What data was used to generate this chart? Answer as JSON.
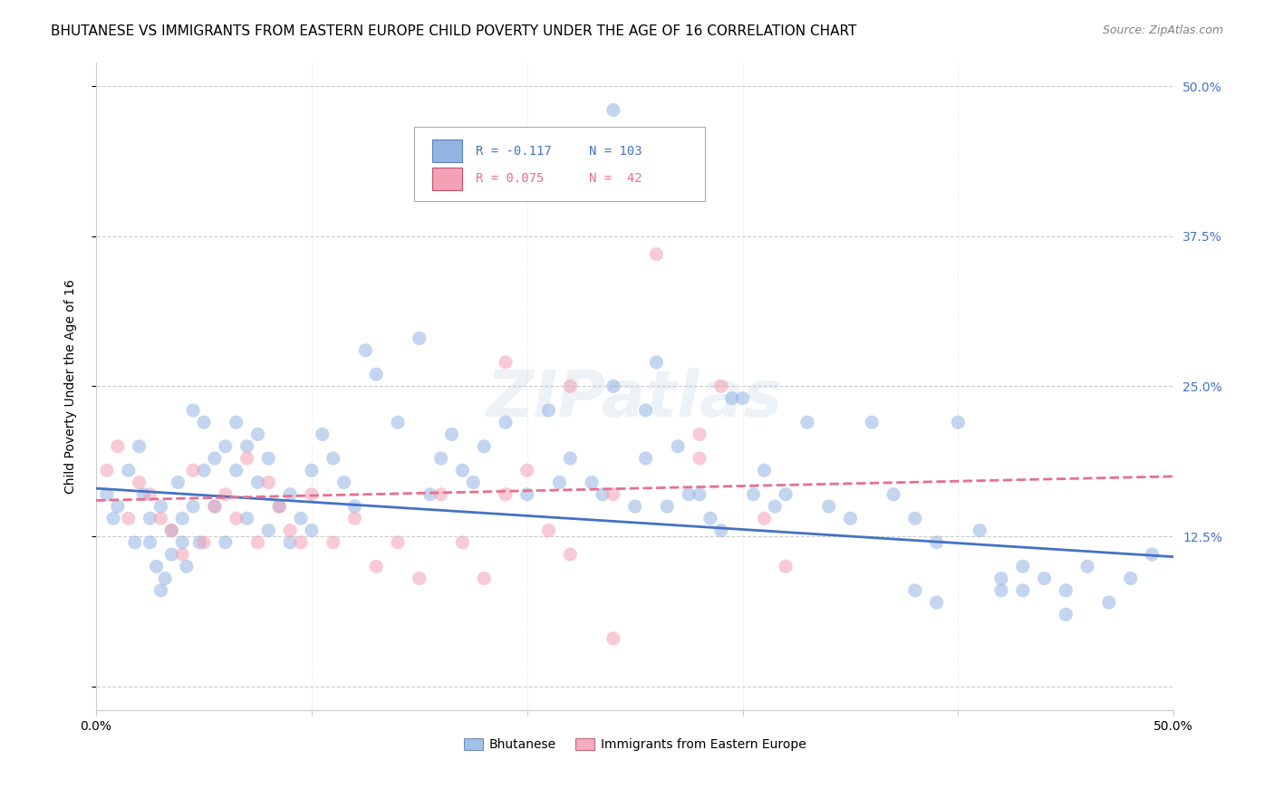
{
  "title": "BHUTANESE VS IMMIGRANTS FROM EASTERN EUROPE CHILD POVERTY UNDER THE AGE OF 16 CORRELATION CHART",
  "source": "Source: ZipAtlas.com",
  "ylabel": "Child Poverty Under the Age of 16",
  "y_ticks": [
    0.0,
    0.125,
    0.25,
    0.375,
    0.5
  ],
  "y_tick_labels": [
    "",
    "12.5%",
    "25.0%",
    "37.5%",
    "50.0%"
  ],
  "xlim": [
    0.0,
    0.5
  ],
  "ylim": [
    -0.02,
    0.52
  ],
  "blue_color": "#92b4e3",
  "pink_color": "#f4a0b5",
  "blue_line_color": "#4472c4",
  "pink_line_color": "#e86f8a",
  "legend_r1": "R = -0.117",
  "legend_n1": "N = 103",
  "legend_r2": "R = 0.075",
  "legend_n2": "N =  42",
  "legend_label1": "Bhutanese",
  "legend_label2": "Immigrants from Eastern Europe",
  "watermark": "ZIPatlas",
  "blue_scatter_x": [
    0.005,
    0.008,
    0.01,
    0.015,
    0.018,
    0.02,
    0.022,
    0.025,
    0.025,
    0.028,
    0.03,
    0.03,
    0.032,
    0.035,
    0.035,
    0.038,
    0.04,
    0.04,
    0.042,
    0.045,
    0.045,
    0.048,
    0.05,
    0.05,
    0.055,
    0.055,
    0.06,
    0.06,
    0.065,
    0.065,
    0.07,
    0.07,
    0.075,
    0.075,
    0.08,
    0.08,
    0.085,
    0.09,
    0.09,
    0.095,
    0.1,
    0.1,
    0.105,
    0.11,
    0.115,
    0.12,
    0.125,
    0.13,
    0.14,
    0.15,
    0.155,
    0.16,
    0.165,
    0.17,
    0.175,
    0.18,
    0.19,
    0.2,
    0.21,
    0.215,
    0.22,
    0.23,
    0.235,
    0.24,
    0.25,
    0.255,
    0.26,
    0.27,
    0.28,
    0.29,
    0.3,
    0.31,
    0.32,
    0.33,
    0.34,
    0.35,
    0.36,
    0.37,
    0.38,
    0.39,
    0.4,
    0.41,
    0.42,
    0.43,
    0.44,
    0.45,
    0.46,
    0.47,
    0.48,
    0.49,
    0.24,
    0.255,
    0.265,
    0.275,
    0.285,
    0.295,
    0.305,
    0.315,
    0.38,
    0.39,
    0.42,
    0.43,
    0.45
  ],
  "blue_scatter_y": [
    0.16,
    0.14,
    0.15,
    0.18,
    0.12,
    0.2,
    0.16,
    0.14,
    0.12,
    0.1,
    0.15,
    0.08,
    0.09,
    0.11,
    0.13,
    0.17,
    0.14,
    0.12,
    0.1,
    0.23,
    0.15,
    0.12,
    0.18,
    0.22,
    0.19,
    0.15,
    0.2,
    0.12,
    0.22,
    0.18,
    0.14,
    0.2,
    0.21,
    0.17,
    0.13,
    0.19,
    0.15,
    0.16,
    0.12,
    0.14,
    0.18,
    0.13,
    0.21,
    0.19,
    0.17,
    0.15,
    0.28,
    0.26,
    0.22,
    0.29,
    0.16,
    0.19,
    0.21,
    0.18,
    0.17,
    0.2,
    0.22,
    0.16,
    0.23,
    0.17,
    0.19,
    0.17,
    0.16,
    0.48,
    0.15,
    0.19,
    0.27,
    0.2,
    0.16,
    0.13,
    0.24,
    0.18,
    0.16,
    0.22,
    0.15,
    0.14,
    0.22,
    0.16,
    0.14,
    0.12,
    0.22,
    0.13,
    0.08,
    0.1,
    0.09,
    0.08,
    0.1,
    0.07,
    0.09,
    0.11,
    0.25,
    0.23,
    0.15,
    0.16,
    0.14,
    0.24,
    0.16,
    0.15,
    0.08,
    0.07,
    0.09,
    0.08,
    0.06
  ],
  "pink_scatter_x": [
    0.005,
    0.01,
    0.015,
    0.02,
    0.025,
    0.03,
    0.035,
    0.04,
    0.045,
    0.05,
    0.055,
    0.06,
    0.065,
    0.07,
    0.075,
    0.08,
    0.085,
    0.09,
    0.095,
    0.1,
    0.11,
    0.12,
    0.13,
    0.14,
    0.15,
    0.16,
    0.17,
    0.18,
    0.19,
    0.2,
    0.21,
    0.22,
    0.24,
    0.26,
    0.28,
    0.29,
    0.31,
    0.32,
    0.19,
    0.22,
    0.24,
    0.28
  ],
  "pink_scatter_y": [
    0.18,
    0.2,
    0.14,
    0.17,
    0.16,
    0.14,
    0.13,
    0.11,
    0.18,
    0.12,
    0.15,
    0.16,
    0.14,
    0.19,
    0.12,
    0.17,
    0.15,
    0.13,
    0.12,
    0.16,
    0.12,
    0.14,
    0.1,
    0.12,
    0.09,
    0.16,
    0.12,
    0.09,
    0.16,
    0.18,
    0.13,
    0.11,
    0.16,
    0.36,
    0.21,
    0.25,
    0.14,
    0.1,
    0.27,
    0.25,
    0.04,
    0.19
  ],
  "blue_trend_y_start": 0.165,
  "blue_trend_y_end": 0.108,
  "pink_trend_y_start": 0.155,
  "pink_trend_y_end": 0.175,
  "marker_size": 120,
  "marker_alpha": 0.55,
  "grid_color": "#cccccc",
  "title_fontsize": 11,
  "axis_label_fontsize": 10,
  "tick_fontsize": 10,
  "right_tick_color": "#4472c4"
}
